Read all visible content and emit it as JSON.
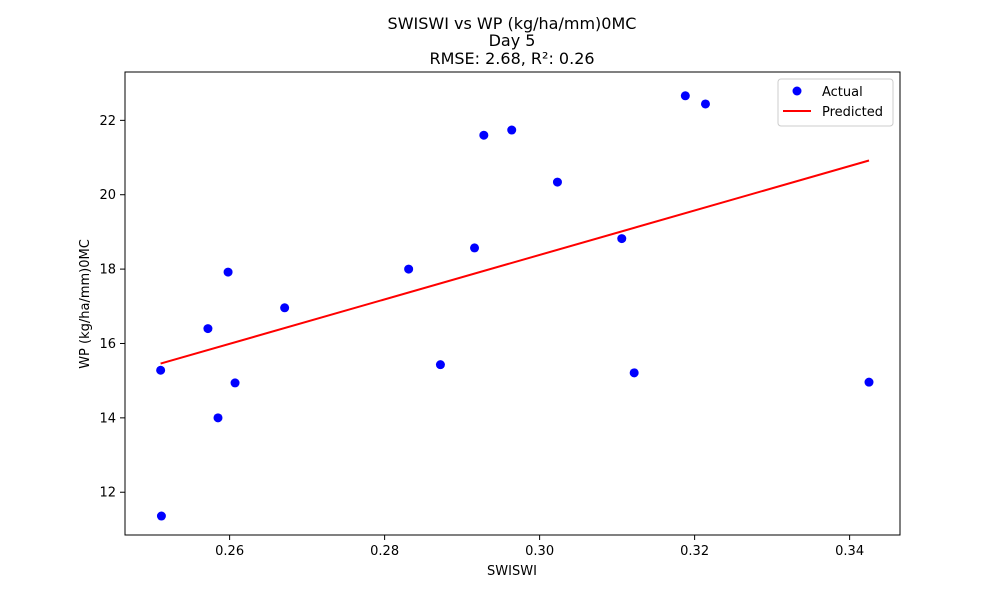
{
  "chart_data": {
    "type": "scatter",
    "title": "SWISWI vs WP (kg/ha/mm)0MC",
    "subtitle_lines": [
      "Day 5",
      "RMSE: 2.68, R²: 0.26"
    ],
    "xlabel": "SWISWI",
    "ylabel": "WP (kg/ha/mm)0MC",
    "xlim": [
      0.2465,
      0.3465
    ],
    "ylim": [
      10.85,
      23.3
    ],
    "x_ticks": [
      0.26,
      0.28,
      0.3,
      0.32,
      0.34
    ],
    "x_tick_labels": [
      "0.26",
      "0.28",
      "0.30",
      "0.32",
      "0.34"
    ],
    "y_ticks": [
      12,
      14,
      16,
      18,
      20,
      22
    ],
    "y_tick_labels": [
      "12",
      "14",
      "16",
      "18",
      "20",
      "22"
    ],
    "grid": false,
    "legend_position": "top-right",
    "series": [
      {
        "name": "Actual",
        "kind": "scatter",
        "color": "#0000ff",
        "points": [
          [
            0.2511,
            15.28
          ],
          [
            0.2512,
            11.36
          ],
          [
            0.2572,
            16.4
          ],
          [
            0.2585,
            14.0
          ],
          [
            0.2598,
            17.92
          ],
          [
            0.2607,
            14.94
          ],
          [
            0.2671,
            16.96
          ],
          [
            0.2831,
            18.0
          ],
          [
            0.2872,
            15.43
          ],
          [
            0.2916,
            18.57
          ],
          [
            0.2928,
            21.6
          ],
          [
            0.2964,
            21.74
          ],
          [
            0.3023,
            20.34
          ],
          [
            0.3106,
            18.82
          ],
          [
            0.3122,
            15.21
          ],
          [
            0.3188,
            22.66
          ],
          [
            0.3214,
            22.44
          ],
          [
            0.3425,
            14.96
          ]
        ]
      },
      {
        "name": "Predicted",
        "kind": "line",
        "color": "#ff0000",
        "points": [
          [
            0.2511,
            15.46
          ],
          [
            0.3425,
            20.92
          ]
        ]
      }
    ]
  }
}
